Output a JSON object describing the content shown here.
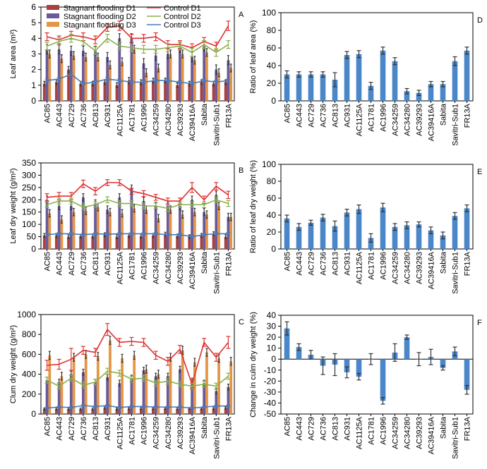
{
  "genotypes": [
    "AC85",
    "AC443",
    "AC729",
    "AC736",
    "AC813",
    "AC931",
    "AC1125A",
    "AC1781",
    "AC1996",
    "AC34259",
    "AC34280",
    "AC39293",
    "AC39416A",
    "Sabita",
    "Savitri-Sub1",
    "FR13A"
  ],
  "legend": {
    "stagnant_d1": "Stagnant flooding D1",
    "stagnant_d2": "Stagnant flooding D2",
    "stagnant_d3": "Stagnant flooding D3",
    "control_d1": "Control D1",
    "control_d2": "Control D2",
    "control_d3": "Control D3"
  },
  "colors": {
    "stagnant_d1": "#a8403e",
    "stagnant_d2": "#6a5a9a",
    "stagnant_d3": "#e59545",
    "control_d1": "#e03030",
    "control_d2": "#8ab04a",
    "control_d3": "#4a7ab8",
    "ratio_bar": "#4a86c8"
  },
  "chart_data": [
    {
      "panel": "A",
      "type": "bar",
      "ylabel": "Leaf area (m²)",
      "ylim": [
        0,
        6
      ],
      "yticks": [
        0,
        1,
        2,
        3,
        4,
        5,
        6
      ],
      "series": [
        {
          "key": "stagnant_d1",
          "kind": "bar",
          "values": [
            1.1,
            1.2,
            2.0,
            1.1,
            1.1,
            1.2,
            1.0,
            1.3,
            1.2,
            1.3,
            1.3,
            1.0,
            1.1,
            1.2,
            1.1,
            1.2
          ],
          "errors": [
            0.15,
            0.15,
            0.2,
            0.15,
            0.15,
            0.15,
            0.15,
            0.2,
            0.15,
            0.15,
            0.15,
            0.15,
            0.15,
            0.15,
            0.15,
            0.15
          ]
        },
        {
          "key": "stagnant_d2",
          "kind": "bar",
          "values": [
            3.3,
            3.3,
            3.2,
            3.2,
            3.2,
            2.8,
            4.0,
            4.0,
            2.4,
            2.9,
            3.0,
            3.4,
            2.8,
            3.5,
            2.0,
            2.6
          ],
          "errors": [
            0.3,
            0.3,
            0.3,
            0.3,
            0.3,
            0.3,
            0.3,
            0.3,
            0.3,
            0.3,
            0.3,
            0.3,
            0.3,
            0.3,
            0.3,
            0.3
          ]
        },
        {
          "key": "stagnant_d3",
          "kind": "bar",
          "values": [
            3.0,
            2.7,
            2.9,
            2.8,
            2.8,
            2.3,
            2.5,
            3.3,
            1.8,
            2.1,
            3.0,
            3.0,
            2.6,
            3.1,
            1.8,
            2.1
          ],
          "errors": [
            0.25,
            0.25,
            0.25,
            0.25,
            0.25,
            0.25,
            0.25,
            0.25,
            0.25,
            0.25,
            0.25,
            0.25,
            0.25,
            0.25,
            0.25,
            0.25
          ]
        },
        {
          "key": "control_d1",
          "kind": "line",
          "values": [
            4.1,
            3.9,
            4.2,
            4.1,
            3.9,
            4.7,
            4.8,
            4.0,
            4.0,
            4.1,
            3.6,
            3.6,
            3.4,
            3.8,
            3.5,
            4.8
          ],
          "errors": [
            0.25,
            0.25,
            0.25,
            0.25,
            0.25,
            0.25,
            0.3,
            0.25,
            0.25,
            0.25,
            0.25,
            0.25,
            0.25,
            0.25,
            0.25,
            0.3
          ]
        },
        {
          "key": "control_d2",
          "kind": "line",
          "values": [
            3.5,
            3.8,
            4.0,
            3.8,
            3.2,
            4.0,
            3.5,
            3.4,
            3.3,
            3.3,
            3.4,
            3.5,
            3.1,
            3.6,
            3.1,
            3.6
          ],
          "errors": [
            0.25,
            0.25,
            0.25,
            0.25,
            0.25,
            0.25,
            0.25,
            0.25,
            0.25,
            0.25,
            0.25,
            0.25,
            0.25,
            0.25,
            0.25,
            0.25
          ]
        },
        {
          "key": "control_d3",
          "kind": "line",
          "values": [
            1.3,
            1.4,
            1.7,
            1.1,
            1.2,
            1.4,
            1.3,
            1.2,
            1.2,
            1.3,
            1.3,
            1.2,
            1.1,
            1.3,
            1.2,
            1.3
          ],
          "errors": [
            0.1,
            0.1,
            0.1,
            0.1,
            0.1,
            0.1,
            0.1,
            0.1,
            0.1,
            0.1,
            0.1,
            0.1,
            0.1,
            0.1,
            0.1,
            0.1
          ]
        }
      ]
    },
    {
      "panel": "B",
      "type": "bar",
      "ylabel": "Leaf dry weight (g/m²)",
      "ylim": [
        0,
        350
      ],
      "yticks": [
        0,
        50,
        100,
        150,
        200,
        250,
        300,
        350
      ],
      "series": [
        {
          "key": "stagnant_d1",
          "kind": "bar",
          "values": [
            55,
            55,
            50,
            52,
            52,
            58,
            50,
            55,
            52,
            55,
            60,
            52,
            50,
            55,
            62,
            50
          ],
          "errors": [
            8,
            8,
            8,
            8,
            8,
            8,
            8,
            8,
            8,
            8,
            8,
            8,
            8,
            8,
            8,
            8
          ]
        },
        {
          "key": "stagnant_d2",
          "kind": "bar",
          "values": [
            200,
            175,
            175,
            210,
            185,
            160,
            210,
            245,
            195,
            175,
            175,
            175,
            200,
            150,
            220,
            130
          ],
          "errors": [
            15,
            15,
            15,
            15,
            15,
            15,
            15,
            15,
            15,
            15,
            15,
            15,
            15,
            15,
            15,
            15
          ]
        },
        {
          "key": "stagnant_d3",
          "kind": "bar",
          "values": [
            145,
            120,
            150,
            155,
            170,
            150,
            145,
            165,
            160,
            125,
            160,
            140,
            150,
            140,
            175,
            130
          ],
          "errors": [
            15,
            15,
            15,
            15,
            15,
            15,
            15,
            15,
            15,
            15,
            15,
            15,
            15,
            15,
            15,
            15
          ]
        },
        {
          "key": "control_d1",
          "kind": "line",
          "values": [
            210,
            215,
            215,
            265,
            235,
            270,
            270,
            235,
            225,
            210,
            195,
            195,
            250,
            200,
            255,
            220
          ],
          "errors": [
            15,
            15,
            15,
            15,
            15,
            12,
            12,
            12,
            12,
            12,
            12,
            12,
            20,
            15,
            15,
            15
          ]
        },
        {
          "key": "control_d2",
          "kind": "line",
          "values": [
            180,
            195,
            195,
            170,
            180,
            200,
            185,
            185,
            175,
            175,
            165,
            180,
            180,
            180,
            200,
            185
          ],
          "errors": [
            12,
            12,
            12,
            12,
            12,
            12,
            12,
            12,
            12,
            12,
            12,
            12,
            12,
            12,
            12,
            12
          ]
        },
        {
          "key": "control_d3",
          "kind": "line",
          "values": [
            58,
            62,
            62,
            58,
            62,
            60,
            62,
            62,
            62,
            62,
            58,
            58,
            50,
            58,
            62,
            62
          ],
          "errors": [
            5,
            5,
            5,
            5,
            5,
            5,
            5,
            5,
            5,
            5,
            5,
            5,
            5,
            5,
            5,
            5
          ]
        }
      ]
    },
    {
      "panel": "C",
      "type": "bar",
      "ylabel": "Clum dry weight (g/m²)",
      "ylim": [
        0,
        1000
      ],
      "yticks": [
        0,
        200,
        400,
        600,
        800,
        1000
      ],
      "series": [
        {
          "key": "stagnant_d1",
          "kind": "bar",
          "values": [
            50,
            50,
            50,
            50,
            50,
            60,
            50,
            55,
            55,
            55,
            55,
            50,
            55,
            55,
            55,
            60
          ],
          "errors": [
            10,
            10,
            10,
            10,
            10,
            10,
            10,
            10,
            10,
            10,
            10,
            10,
            10,
            10,
            10,
            10
          ]
        },
        {
          "key": "stagnant_d2",
          "kind": "bar",
          "values": [
            340,
            320,
            400,
            420,
            320,
            370,
            310,
            360,
            440,
            380,
            380,
            450,
            330,
            310,
            230,
            270
          ],
          "errors": [
            30,
            30,
            30,
            30,
            30,
            30,
            30,
            30,
            30,
            30,
            30,
            30,
            30,
            30,
            30,
            30
          ]
        },
        {
          "key": "stagnant_d3",
          "kind": "bar",
          "values": [
            590,
            380,
            570,
            600,
            580,
            740,
            560,
            590,
            450,
            400,
            570,
            640,
            520,
            620,
            560,
            530
          ],
          "errors": [
            40,
            40,
            40,
            40,
            40,
            40,
            40,
            40,
            40,
            40,
            40,
            40,
            40,
            40,
            40,
            40
          ]
        },
        {
          "key": "control_d1",
          "kind": "line",
          "values": [
            490,
            500,
            550,
            640,
            620,
            850,
            720,
            730,
            720,
            590,
            530,
            650,
            300,
            720,
            570,
            720
          ],
          "errors": [
            50,
            50,
            110,
            40,
            40,
            60,
            40,
            40,
            40,
            40,
            40,
            40,
            40,
            40,
            40,
            60
          ]
        },
        {
          "key": "control_d2",
          "kind": "line",
          "values": [
            340,
            280,
            360,
            290,
            320,
            430,
            410,
            350,
            360,
            310,
            330,
            300,
            280,
            300,
            280,
            380
          ],
          "errors": [
            30,
            30,
            30,
            30,
            30,
            30,
            30,
            30,
            30,
            30,
            30,
            30,
            30,
            30,
            30,
            30
          ]
        },
        {
          "key": "control_d3",
          "kind": "line",
          "values": [
            60,
            70,
            65,
            85,
            75,
            85,
            65,
            75,
            75,
            70,
            70,
            70,
            60,
            70,
            80,
            80
          ],
          "errors": [
            8,
            8,
            8,
            8,
            8,
            8,
            8,
            8,
            8,
            8,
            8,
            8,
            8,
            8,
            8,
            8
          ]
        }
      ]
    },
    {
      "panel": "D",
      "type": "bar",
      "ylabel": "Ratio of leaf area (%)",
      "ylim": [
        0,
        100
      ],
      "yticks": [
        0,
        20,
        40,
        60,
        80,
        100
      ],
      "values": [
        30,
        30,
        30,
        30,
        24,
        52,
        53,
        17,
        57,
        45,
        11,
        9,
        19,
        19,
        45,
        57
      ],
      "errors": [
        4,
        3,
        3,
        3,
        8,
        4,
        4,
        4,
        4,
        4,
        3,
        3,
        3,
        3,
        5,
        4
      ]
    },
    {
      "panel": "E",
      "type": "bar",
      "ylabel": "Ratio of leaf dry weight (%)",
      "ylim": [
        0,
        100
      ],
      "yticks": [
        0,
        20,
        40,
        60,
        80,
        100
      ],
      "values": [
        36,
        26,
        31,
        37,
        27,
        43,
        47,
        13,
        49,
        26,
        28,
        29,
        22,
        16,
        39,
        48
      ],
      "errors": [
        4,
        4,
        3,
        4,
        6,
        4,
        5,
        5,
        5,
        4,
        4,
        3,
        4,
        4,
        4,
        4
      ]
    },
    {
      "panel": "F",
      "type": "bar",
      "ylabel": "Change in culm dry weight (%)",
      "ylim": [
        -50,
        40
      ],
      "yticks": [
        -50,
        -40,
        -30,
        -20,
        -10,
        0,
        10,
        20,
        30,
        40
      ],
      "values": [
        28,
        11,
        4,
        -6,
        -5,
        -12,
        -16,
        0,
        -38,
        6,
        20,
        0,
        2,
        -8,
        7,
        -28
      ],
      "errors": [
        6,
        3,
        4,
        8,
        10,
        5,
        3,
        5,
        3,
        8,
        2,
        6,
        7,
        2,
        4,
        4
      ]
    }
  ]
}
